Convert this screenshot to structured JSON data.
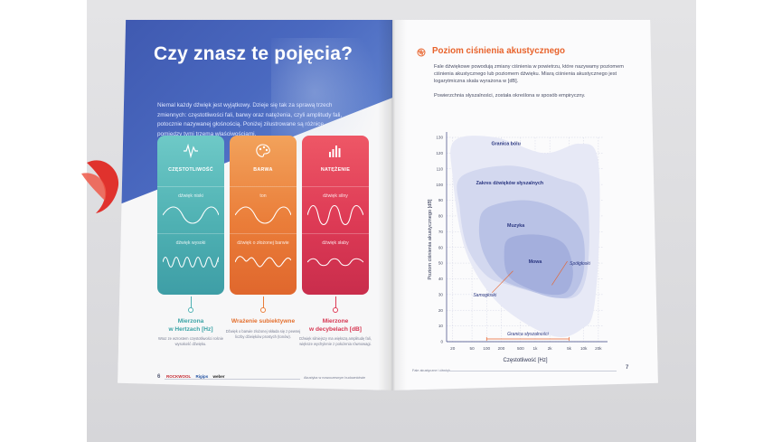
{
  "colors": {
    "teal": "#4fb1b3",
    "orange": "#ea7d39",
    "red": "#dd3a55",
    "hero_blue": "#4a69c0",
    "accent_orange": "#e8632c",
    "navy_text": "#2a3680"
  },
  "left_page": {
    "title": "Czy znasz te pojęcia?",
    "intro": "Niemal każdy dźwięk jest wyjątkowy. Dzieje się tak za sprawą trzech zmiennych: częstotliwości fali, barwy oraz natężenia, czyli amplitudy fali, potocznie nazywanej głośnością. Poniżej zilustrowane są różnice pomiędzy tymi trzema właściwościami.",
    "cards": [
      {
        "label": "CZĘSTOTLIWOŚĆ",
        "icon": "waveform-icon",
        "row1": "dźwięk niski",
        "row2": "dźwięk wysoki",
        "measure": "Mierzona\nw Hertzach [Hz]",
        "measure_l1": "Mierzona",
        "measure_l2": "w Hertzach [Hz]",
        "note": "Wraz ze wzrostem częstotliwości rośnie wysokość dźwięku."
      },
      {
        "label": "BARWA",
        "icon": "palette-icon",
        "row1": "ton",
        "row2": "dźwięk o złożonej barwie",
        "measure_l1": "Wrażenie subiektywne",
        "measure_l2": "",
        "note": "Dźwięk o barwie złożonej składa się z pewnej liczby dźwięków prostych (tonów)."
      },
      {
        "label": "NATĘŻENIE",
        "icon": "level-bars-icon",
        "row1": "dźwięk silny",
        "row2": "dźwięk słaby",
        "measure_l1": "Mierzone",
        "measure_l2": "w decybelach [dB]",
        "note": "Dźwięk silniejszy ma większą amplitudę fali, większe wychylenie z położenia równowagi."
      }
    ],
    "page_number": "6",
    "logos": [
      "ROCKWOOL",
      "Rigips",
      "weber"
    ],
    "footer": "Akustyka w nowoczesnym budownictwie"
  },
  "right_page": {
    "title": "Poziom ciśnienia akustycznego",
    "icon": "ear-wave-icon",
    "paragraph1": "Fale dźwiękowe powodują zmiany ciśnienia w powietrzu, które nazywamy poziomem ciśnienia akustycznego lub poziomem dźwięku. Miarą ciśnienia akustycznego jest logarytmiczna skala wyrażona w [dB].",
    "paragraph2": "Powierzchnia słyszalności, została określona w sposób empiryczny.",
    "page_number": "7",
    "footer": "Fale akustyczne i dźwięk"
  },
  "chart_data": {
    "type": "area",
    "xlabel": "Częstotliwość [Hz]",
    "ylabel": "Poziom ciśnienia akustycznego [dB]",
    "x_scale": "log",
    "x_ticks": [
      "20",
      "50",
      "100",
      "200",
      "500",
      "1k",
      "2k",
      "5k",
      "10k",
      "20k"
    ],
    "x_tick_values": [
      20,
      50,
      100,
      200,
      500,
      1000,
      2000,
      5000,
      10000,
      20000
    ],
    "y_ticks": [
      0,
      10,
      20,
      30,
      40,
      50,
      60,
      70,
      80,
      90,
      100,
      110,
      120,
      130
    ],
    "ylim": [
      0,
      130
    ],
    "regions": [
      {
        "name": "Granica bólu",
        "label_x": 250,
        "label_y": 125
      },
      {
        "name": "Zakres dźwięków słyszalnych",
        "label_x": 300,
        "label_y": 100
      },
      {
        "name": "Muzyka",
        "label_x": 400,
        "label_y": 73
      },
      {
        "name": "Mowa",
        "label_x": 1000,
        "label_y": 50
      }
    ],
    "annotations": [
      {
        "text": "Samogłoski",
        "x": 100,
        "y": 30
      },
      {
        "text": "Spółgłoski",
        "x": 5000,
        "y": 50
      },
      {
        "text": "Granica słyszalności",
        "x": 500,
        "y": 3
      }
    ],
    "hearing_range_x": [
      100,
      5000
    ]
  }
}
